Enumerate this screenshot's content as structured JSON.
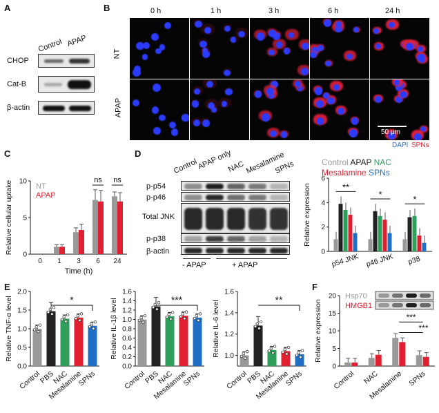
{
  "panels": {
    "A": "A",
    "B": "B",
    "C": "C",
    "D": "D",
    "E": "E",
    "F": "F"
  },
  "panelA": {
    "lanes": [
      "Control",
      "APAP"
    ],
    "rows": [
      "CHOP",
      "Cat-B",
      "β-actin"
    ]
  },
  "panelB": {
    "times": [
      "0 h",
      "1 h",
      "3 h",
      "6 h",
      "24 h"
    ],
    "rows": [
      "NT",
      "APAP"
    ],
    "scale": "50 μm",
    "legend_dapi": "DAPI",
    "legend_spns": "SPNs",
    "colors": {
      "dapi": "#2a6bd6",
      "spns": "#e21b2c"
    }
  },
  "panelD_blot": {
    "lanes": [
      "Control",
      "APAP only",
      "NAC",
      "Mesalamine",
      "SPNs"
    ],
    "rows": [
      "p-p54",
      "p-p46",
      "Total JNK",
      "p-p38",
      "β-actin"
    ],
    "groups": [
      "- APAP",
      "+ APAP"
    ]
  },
  "legendD": {
    "control": "Control",
    "apap": "APAP",
    "nac": "NAC",
    "mesalamine": "Mesalamine",
    "spns": "SPNs"
  },
  "colors": {
    "control": "#999999",
    "apap": "#222222",
    "nac": "#2e9e5b",
    "mesalamine": "#e02030",
    "spns": "#1f6fc4",
    "nt": "#999999"
  },
  "chart_data": [
    {
      "id": "C",
      "type": "bar",
      "categories": [
        "0",
        "1",
        "3",
        "6",
        "24"
      ],
      "xlabel": "Time (h)",
      "ylabel": "Relative cellular uptake",
      "ylim": [
        0,
        10
      ],
      "yticks": [
        0,
        5,
        10
      ],
      "series": [
        {
          "name": "NT",
          "values": [
            0,
            1.0,
            3.0,
            7.4,
            7.9
          ]
        },
        {
          "name": "APAP",
          "values": [
            0,
            1.0,
            3.3,
            7.2,
            7.2
          ]
        }
      ],
      "errors": [
        [
          0,
          0.3,
          0.6,
          1.4,
          0.6
        ],
        [
          0,
          0.3,
          0.8,
          1.5,
          1.2
        ]
      ],
      "annotations": [
        {
          "text": "ns",
          "category": "6"
        },
        {
          "text": "ns",
          "category": "24"
        }
      ],
      "legend": "top-left"
    },
    {
      "id": "D",
      "type": "bar",
      "categories": [
        "p54 JNK",
        "p46 JNK",
        "p38"
      ],
      "ylabel": "Relative expression",
      "ylim": [
        0,
        6
      ],
      "yticks": [
        0,
        2,
        4,
        6
      ],
      "series": [
        {
          "name": "Control",
          "values": [
            1.0,
            1.0,
            1.0
          ]
        },
        {
          "name": "APAP",
          "values": [
            3.9,
            3.3,
            2.8
          ]
        },
        {
          "name": "NAC",
          "values": [
            3.4,
            2.9,
            2.9
          ]
        },
        {
          "name": "Mesalamine",
          "values": [
            3.0,
            2.6,
            1.3
          ]
        },
        {
          "name": "SPNs",
          "values": [
            1.5,
            1.5,
            0.7
          ]
        }
      ],
      "annotations": [
        {
          "text": "**",
          "category": "p54 JNK"
        },
        {
          "text": "*",
          "category": "p46 JNK"
        },
        {
          "text": "*",
          "category": "p38"
        }
      ],
      "legend": "top"
    },
    {
      "id": "E1",
      "type": "bar",
      "categories": [
        "Control",
        "PBS",
        "NAC",
        "Mesalamine",
        "SPNs"
      ],
      "ylabel": "Relative TNF-α level",
      "ylim": [
        0,
        2.0
      ],
      "yticks": [
        0,
        0.5,
        1.0,
        1.5,
        2.0
      ],
      "values": [
        1.0,
        1.47,
        1.27,
        1.3,
        1.08
      ],
      "annotations": [
        {
          "text": "*"
        }
      ]
    },
    {
      "id": "E2",
      "type": "bar",
      "categories": [
        "Control",
        "PBS",
        "NAC",
        "Mesalamine",
        "SPNs"
      ],
      "ylabel": "Relative IL-1β level",
      "ylim": [
        0,
        1.6
      ],
      "yticks": [
        0,
        0.2,
        0.4,
        0.6,
        0.8,
        1.0,
        1.2,
        1.4,
        1.6
      ],
      "values": [
        1.0,
        1.28,
        1.07,
        1.08,
        1.04
      ],
      "annotations": [
        {
          "text": "***"
        }
      ]
    },
    {
      "id": "E3",
      "type": "bar",
      "categories": [
        "Control",
        "PBS",
        "NAC",
        "Mesalamine",
        "SPNs"
      ],
      "ylabel": "Relative IL-6 level",
      "ylim": [
        0.9,
        1.6
      ],
      "yticks": [
        1.0,
        1.2,
        1.4,
        1.6
      ],
      "values": [
        1.0,
        1.28,
        1.05,
        1.04,
        1.01
      ],
      "annotations": [
        {
          "text": "**"
        }
      ]
    },
    {
      "id": "F",
      "type": "bar",
      "categories": [
        "Control",
        "NAC",
        "Mesalamine",
        "SPNs"
      ],
      "ylabel": "Relative expression",
      "ylim": [
        0,
        20
      ],
      "yticks": [
        0,
        5,
        10,
        15,
        20
      ],
      "series": [
        {
          "name": "Hsp70",
          "values": [
            1.0,
            2.3,
            8.0,
            3.1
          ]
        },
        {
          "name": "HMGB1",
          "values": [
            1.0,
            3.2,
            6.8,
            2.6
          ]
        }
      ],
      "annotations": [
        {
          "text": "***"
        },
        {
          "text": "***"
        }
      ],
      "legend": "top-left"
    }
  ]
}
